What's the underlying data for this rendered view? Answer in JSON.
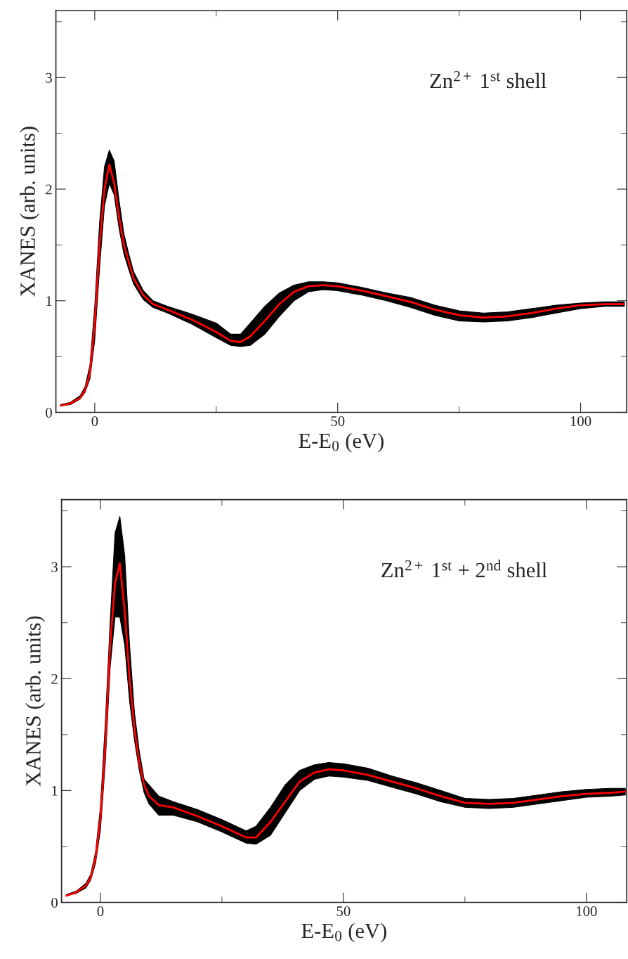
{
  "chart_data": [
    {
      "type": "line",
      "xlabel": "E-E$_{0}$ (eV)",
      "ylabel": "XANES (arb. units)",
      "annotations": [
        "Zn$^{2+}$ 1$^{st}$ shell"
      ],
      "xlim": [
        -8,
        109.5
      ],
      "ylim": [
        0,
        3.6
      ],
      "xticks": [
        0,
        50,
        100
      ],
      "yticks": [
        0,
        1,
        2,
        3
      ],
      "grid": false,
      "legend": false,
      "x": [
        -7,
        -5,
        -3,
        -2,
        -1,
        0,
        1,
        2,
        3,
        4,
        5,
        6,
        7,
        8,
        10,
        12,
        15,
        20,
        25,
        28,
        30,
        32,
        35,
        38,
        41,
        44,
        47,
        50,
        55,
        60,
        65,
        70,
        75,
        80,
        85,
        90,
        95,
        100,
        105,
        109
      ],
      "series": [
        {
          "color": "#ff0000",
          "lower": [
            0.06,
            0.07,
            0.12,
            0.18,
            0.3,
            0.65,
            1.3,
            1.85,
            2.05,
            1.95,
            1.65,
            1.42,
            1.28,
            1.15,
            1.01,
            0.94,
            0.89,
            0.79,
            0.67,
            0.6,
            0.59,
            0.6,
            0.7,
            0.86,
            1.0,
            1.08,
            1.1,
            1.09,
            1.05,
            1.0,
            0.94,
            0.87,
            0.82,
            0.81,
            0.82,
            0.85,
            0.89,
            0.93,
            0.95,
            0.95
          ],
          "upper": [
            0.07,
            0.09,
            0.15,
            0.23,
            0.42,
            0.95,
            1.7,
            2.2,
            2.35,
            2.25,
            1.9,
            1.6,
            1.42,
            1.26,
            1.09,
            1.0,
            0.95,
            0.88,
            0.8,
            0.7,
            0.7,
            0.8,
            0.95,
            1.07,
            1.14,
            1.17,
            1.17,
            1.16,
            1.12,
            1.07,
            1.03,
            0.96,
            0.91,
            0.89,
            0.9,
            0.93,
            0.96,
            0.98,
            0.99,
            0.99
          ],
          "values": [
            0.06,
            0.08,
            0.13,
            0.2,
            0.35,
            0.8,
            1.5,
            2.0,
            2.22,
            2.05,
            1.75,
            1.5,
            1.35,
            1.2,
            1.05,
            0.97,
            0.92,
            0.83,
            0.72,
            0.64,
            0.63,
            0.68,
            0.82,
            0.97,
            1.08,
            1.13,
            1.14,
            1.13,
            1.09,
            1.04,
            0.99,
            0.92,
            0.87,
            0.85,
            0.86,
            0.89,
            0.93,
            0.96,
            0.97,
            0.97
          ]
        }
      ]
    },
    {
      "type": "line",
      "xlabel": "E-E$_{0}$ (eV)",
      "ylabel": "XANES (arb. units)",
      "annotations": [
        "Zn$^{2+}$ 1$^{st}$ + 2$^{nd}$ shell"
      ],
      "xlim": [
        -8,
        108.3
      ],
      "ylim": [
        0,
        3.6
      ],
      "xticks": [
        0,
        50,
        100
      ],
      "yticks": [
        0,
        1,
        2,
        3
      ],
      "grid": false,
      "legend": false,
      "x": [
        -7,
        -5,
        -3,
        -2,
        -1,
        0,
        1,
        2,
        3,
        4,
        5,
        6,
        7,
        8,
        9,
        10,
        12,
        15,
        20,
        25,
        30,
        32,
        35,
        38,
        41,
        44,
        47,
        50,
        55,
        60,
        65,
        70,
        75,
        80,
        85,
        90,
        95,
        100,
        105,
        108
      ],
      "series": [
        {
          "color": "#ff0000",
          "lower": [
            0.06,
            0.08,
            0.13,
            0.2,
            0.35,
            0.65,
            1.25,
            2.1,
            2.55,
            2.55,
            2.3,
            1.8,
            1.45,
            1.18,
            0.98,
            0.88,
            0.78,
            0.78,
            0.72,
            0.63,
            0.53,
            0.52,
            0.6,
            0.8,
            1.0,
            1.1,
            1.13,
            1.12,
            1.09,
            1.03,
            0.97,
            0.9,
            0.85,
            0.84,
            0.85,
            0.88,
            0.91,
            0.94,
            0.95,
            0.96
          ],
          "upper": [
            0.07,
            0.1,
            0.17,
            0.25,
            0.45,
            0.85,
            1.6,
            2.5,
            3.3,
            3.45,
            3.1,
            2.3,
            1.7,
            1.35,
            1.1,
            1.05,
            0.95,
            0.9,
            0.83,
            0.74,
            0.64,
            0.68,
            0.85,
            1.05,
            1.18,
            1.23,
            1.25,
            1.24,
            1.2,
            1.13,
            1.07,
            1.0,
            0.93,
            0.92,
            0.93,
            0.96,
            0.99,
            1.01,
            1.02,
            1.02
          ],
          "values": [
            0.06,
            0.09,
            0.15,
            0.22,
            0.4,
            0.75,
            1.4,
            2.3,
            2.85,
            3.03,
            2.6,
            2.0,
            1.55,
            1.25,
            1.05,
            0.95,
            0.87,
            0.85,
            0.77,
            0.68,
            0.58,
            0.58,
            0.72,
            0.9,
            1.08,
            1.16,
            1.19,
            1.18,
            1.14,
            1.08,
            1.02,
            0.95,
            0.89,
            0.88,
            0.89,
            0.92,
            0.95,
            0.97,
            0.98,
            0.99
          ]
        }
      ]
    }
  ]
}
